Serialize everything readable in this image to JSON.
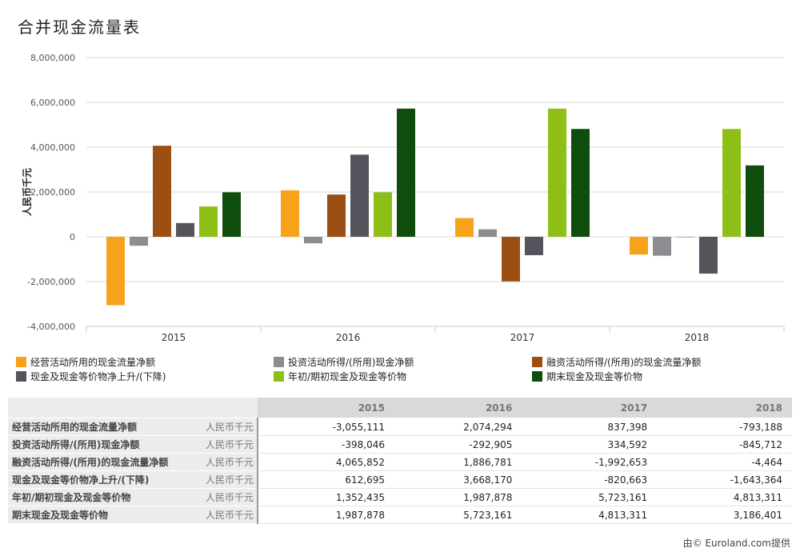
{
  "title": "合并现金流量表",
  "footer": "由© Euroland.com提供",
  "chart_data": {
    "type": "bar",
    "title": "合并现金流量表",
    "ylabel": "人民币千元",
    "xlabel": "",
    "ylim": [
      -4000000,
      8000000
    ],
    "yticks": [
      -4000000,
      -2000000,
      0,
      2000000,
      4000000,
      6000000,
      8000000
    ],
    "ytick_labels": [
      "-4,000,000",
      "-2,000,000",
      "0",
      "2,000,000",
      "4,000,000",
      "6,000,000",
      "8,000,000"
    ],
    "categories": [
      "2015",
      "2016",
      "2017",
      "2018"
    ],
    "grid": true,
    "legend_position": "bottom",
    "series": [
      {
        "name": "经营活动所用的现金流量净额",
        "color": "#f7a21b",
        "values": [
          -3055111,
          2074294,
          837398,
          -793188
        ]
      },
      {
        "name": "投资活动所得/(所用)现金净额",
        "color": "#8c8d90",
        "values": [
          -398046,
          -292905,
          334592,
          -845712
        ]
      },
      {
        "name": "融资活动所得/(所用)的现金流量净额",
        "color": "#9c4f13",
        "values": [
          4065852,
          1886781,
          -1992653,
          -4464
        ]
      },
      {
        "name": "现金及现金等价物净上升/(下降)",
        "color": "#54545c",
        "values": [
          612695,
          3668170,
          -820663,
          -1643364
        ]
      },
      {
        "name": "年初/期初现金及现金等价物",
        "color": "#8ebf16",
        "values": [
          1352435,
          1987878,
          5723161,
          4813311
        ]
      },
      {
        "name": "期末现金及现金等价物",
        "color": "#0e4d0c",
        "values": [
          1987878,
          5723161,
          4813311,
          3186401
        ]
      }
    ]
  },
  "table": {
    "years": [
      "2015",
      "2016",
      "2017",
      "2018"
    ],
    "rows": [
      {
        "label": "经营活动所用的现金流量净额",
        "unit": "人民币千元",
        "values": [
          "-3,055,111",
          "2,074,294",
          "837,398",
          "-793,188"
        ]
      },
      {
        "label": "投资活动所得/(所用)现金净额",
        "unit": "人民币千元",
        "values": [
          "-398,046",
          "-292,905",
          "334,592",
          "-845,712"
        ]
      },
      {
        "label": "融资活动所得/(所用)的现金流量净额",
        "unit": "人民币千元",
        "values": [
          "4,065,852",
          "1,886,781",
          "-1,992,653",
          "-4,464"
        ]
      },
      {
        "label": "现金及现金等价物净上升/(下降)",
        "unit": "人民币千元",
        "values": [
          "612,695",
          "3,668,170",
          "-820,663",
          "-1,643,364"
        ]
      },
      {
        "label": "年初/期初现金及现金等价物",
        "unit": "人民币千元",
        "values": [
          "1,352,435",
          "1,987,878",
          "5,723,161",
          "4,813,311"
        ]
      },
      {
        "label": "期末现金及现金等价物",
        "unit": "人民币千元",
        "values": [
          "1,987,878",
          "5,723,161",
          "4,813,311",
          "3,186,401"
        ]
      }
    ]
  }
}
